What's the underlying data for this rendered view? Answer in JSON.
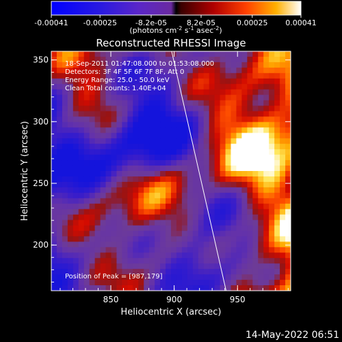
{
  "colorbar": {
    "ticks": [
      "-0.00041",
      "-0.00025",
      "-8.2e-05",
      "8.2e-05",
      "0.00025",
      "0.00041"
    ],
    "tick_values": [
      -0.00041,
      -0.00025,
      -8.2e-05,
      8.2e-05,
      0.00025,
      0.00041
    ],
    "range": [
      -0.00041,
      0.00041
    ],
    "unit_main": "(photons cm",
    "unit_sup1": "-2",
    "unit_mid1": " s",
    "unit_sup2": "-1",
    "unit_mid2": " asec",
    "unit_sup3": "-2",
    "unit_end": ")"
  },
  "chart_data": {
    "type": "heatmap",
    "title": "Reconstructed RHESSI Image",
    "xlabel": "Heliocentric X (arcsec)",
    "ylabel": "Heliocentric Y (arcsec)",
    "xlim": [
      803,
      992
    ],
    "ylim": [
      163,
      357
    ],
    "x_ticks": [
      850,
      900,
      950
    ],
    "y_ticks": [
      200,
      250,
      300,
      350
    ],
    "x_tick_labels": [
      "850",
      "900",
      "950"
    ],
    "y_tick_labels": [
      "200",
      "250",
      "300",
      "350"
    ],
    "annotations": [
      "18-Sep-2011 01:47:08.000 to 01:53:08.000",
      "Detectors: 3F 4F 5F 6F 7F 8F, Att 0",
      "Energy Range: 25.0 - 50.0 keV",
      "Clean    Total counts: 1.40E+04"
    ],
    "peak_label": "Position of Peak = [987,179]",
    "peak": [
      987,
      179
    ],
    "limb_line": [
      [
        898,
        357
      ],
      [
        941,
        163
      ]
    ],
    "grid": false
  },
  "footer": {
    "date": "14-May-2022 06:51"
  },
  "colors": {
    "background": "#000000",
    "text": "#ffffff",
    "negative": "#1a1acc",
    "mid": "#6a3ab0",
    "positive_high": "#ffffff"
  }
}
